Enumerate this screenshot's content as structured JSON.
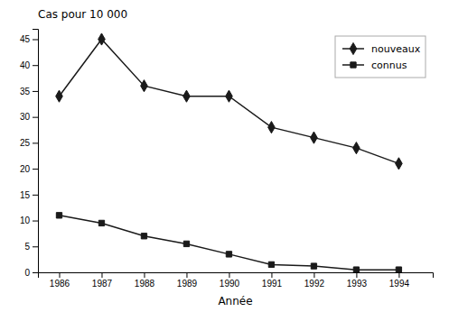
{
  "chart_data": {
    "type": "line",
    "ylabel": "Cas pour 10 000",
    "xlabel": "Année",
    "x": [
      1986,
      1987,
      1988,
      1989,
      1990,
      1991,
      1992,
      1993,
      1994
    ],
    "series": [
      {
        "name": "nouveaux",
        "color": "#1a1a1a",
        "marker": "diamond",
        "values": [
          34,
          45,
          36,
          34,
          34,
          28,
          26,
          24,
          21
        ]
      },
      {
        "name": "connus",
        "color": "#1a1a1a",
        "marker": "square",
        "values": [
          11,
          9.5,
          7,
          5.5,
          3.5,
          1.5,
          1.2,
          0.5,
          0.5
        ]
      }
    ],
    "xlim": [
      1985.5,
      1994.8
    ],
    "xticks": [
      1986,
      1987,
      1988,
      1989,
      1990,
      1991,
      1992,
      1993,
      1994
    ],
    "ylim": [
      0,
      47
    ],
    "yticks": [
      0,
      5,
      10,
      15,
      20,
      25,
      30,
      35,
      40,
      45
    ],
    "legend": "upper right",
    "grid": false
  }
}
